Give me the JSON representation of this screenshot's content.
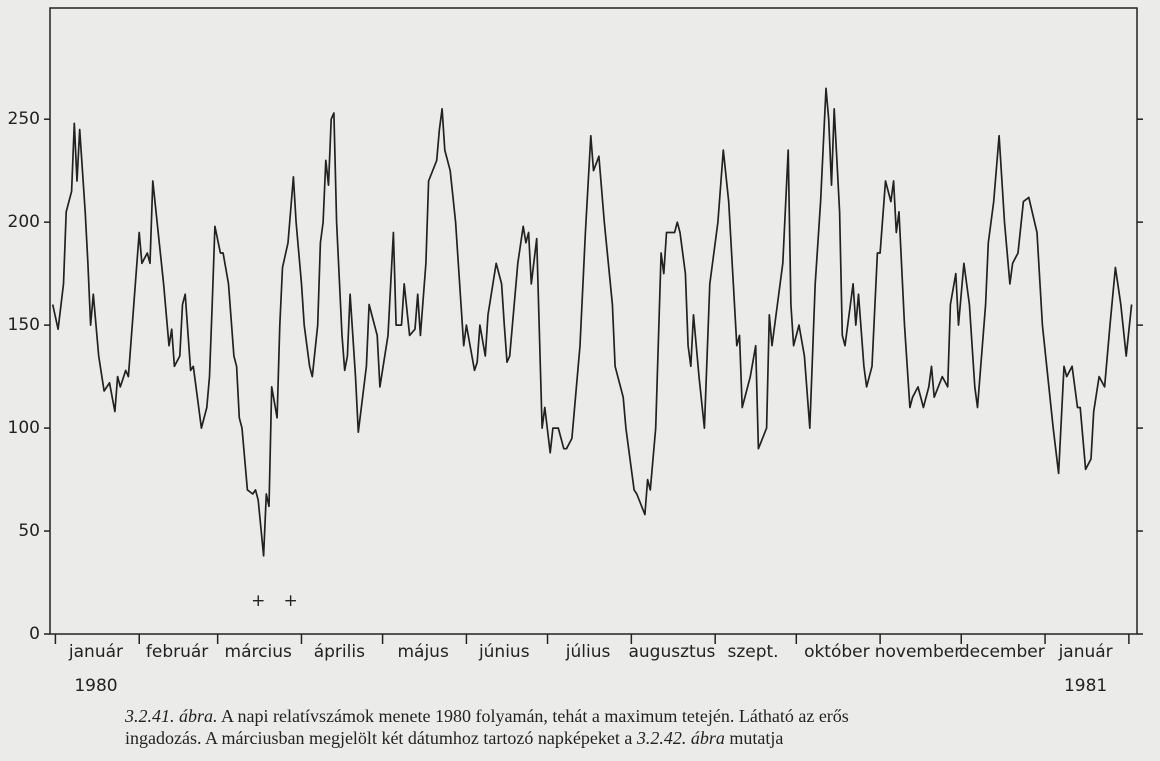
{
  "chart_data": {
    "type": "line",
    "xlim": [
      -2,
      400
    ],
    "ylim": [
      0,
      304
    ],
    "yticks": [
      0,
      50,
      100,
      150,
      200,
      250
    ],
    "xticks": [
      {
        "value": 15,
        "label": "január"
      },
      {
        "value": 45,
        "label": "február"
      },
      {
        "value": 75,
        "label": "március"
      },
      {
        "value": 105,
        "label": "április"
      },
      {
        "value": 136,
        "label": "május"
      },
      {
        "value": 166,
        "label": "június"
      },
      {
        "value": 197,
        "label": "július"
      },
      {
        "value": 228,
        "label": "augusztus"
      },
      {
        "value": 258,
        "label": "szept."
      },
      {
        "value": 289,
        "label": "október"
      },
      {
        "value": 319,
        "label": "november"
      },
      {
        "value": 350,
        "label": "december"
      },
      {
        "value": 381,
        "label": "január"
      }
    ],
    "month_boundaries": [
      0,
      31,
      60,
      91,
      121,
      152,
      182,
      213,
      244,
      274,
      305,
      335,
      366,
      397
    ],
    "year_labels": [
      {
        "value": 15,
        "label": "1980"
      },
      {
        "value": 381,
        "label": "1981"
      }
    ],
    "marked_days": {
      "x": [
        75,
        87
      ],
      "y": 16,
      "symbol": "+"
    },
    "x": [
      -1,
      1,
      3,
      4,
      6,
      7,
      8,
      9,
      11,
      12,
      13,
      14,
      16,
      18,
      20,
      22,
      23,
      24,
      26,
      27,
      29,
      31,
      32,
      34,
      35,
      36,
      38,
      40,
      42,
      43,
      44,
      46,
      47,
      48,
      50,
      51,
      53,
      54,
      56,
      57,
      58,
      59,
      61,
      62,
      64,
      66,
      67,
      68,
      69,
      71,
      73,
      74,
      75,
      77,
      78,
      79,
      80,
      82,
      83,
      84,
      86,
      88,
      89,
      91,
      92,
      94,
      95,
      97,
      98,
      99,
      100,
      101,
      102,
      103,
      104,
      106,
      107,
      108,
      109,
      111,
      112,
      115,
      116,
      118,
      119,
      120,
      123,
      125,
      126,
      128,
      129,
      131,
      133,
      134,
      135,
      137,
      138,
      141,
      142,
      143,
      144,
      146,
      148,
      150,
      151,
      152,
      155,
      156,
      157,
      159,
      160,
      163,
      165,
      166,
      167,
      168,
      171,
      173,
      174,
      175,
      176,
      178,
      180,
      181,
      183,
      184,
      186,
      188,
      189,
      191,
      194,
      196,
      198,
      199,
      201,
      203,
      206,
      207,
      210,
      211,
      214,
      215,
      218,
      219,
      220,
      222,
      224,
      225,
      226,
      229,
      230,
      231,
      233,
      234,
      235,
      236,
      238,
      240,
      242,
      245,
      247,
      249,
      252,
      253,
      254,
      257,
      259,
      260,
      263,
      264,
      265,
      268,
      269,
      271,
      272,
      273,
      275,
      277,
      279,
      281,
      283,
      285,
      286,
      287,
      288,
      290,
      291,
      292,
      295,
      296,
      297,
      299,
      300,
      302,
      304,
      305,
      307,
      309,
      310,
      311,
      312,
      314,
      316,
      317,
      319,
      321,
      323,
      324,
      325,
      328,
      330,
      331,
      333,
      334,
      336,
      338,
      340,
      341,
      344,
      345,
      347,
      349,
      351,
      353,
      354,
      356,
      358,
      360,
      363,
      365,
      367,
      369,
      371,
      373,
      374,
      376,
      378,
      379,
      381,
      383,
      384,
      386,
      388,
      390,
      392,
      394,
      396,
      398
    ],
    "series": [
      {
        "color": "#222222",
        "values": [
          160,
          148,
          170,
          205,
          215,
          248,
          220,
          245,
          205,
          180,
          150,
          165,
          135,
          118,
          122,
          108,
          125,
          120,
          128,
          125,
          160,
          195,
          180,
          185,
          180,
          220,
          195,
          170,
          140,
          148,
          130,
          135,
          160,
          165,
          128,
          130,
          110,
          100,
          110,
          125,
          160,
          198,
          185,
          185,
          170,
          135,
          130,
          105,
          100,
          70,
          68,
          70,
          65,
          38,
          68,
          62,
          120,
          105,
          150,
          178,
          190,
          222,
          200,
          170,
          150,
          130,
          125,
          150,
          190,
          200,
          230,
          218,
          250,
          253,
          200,
          145,
          128,
          135,
          165,
          125,
          98,
          130,
          160,
          150,
          145,
          120,
          145,
          195,
          150,
          150,
          170,
          145,
          148,
          165,
          145,
          180,
          220,
          230,
          245,
          255,
          235,
          225,
          200,
          160,
          140,
          150,
          128,
          132,
          150,
          135,
          155,
          180,
          170,
          150,
          132,
          135,
          180,
          198,
          190,
          195,
          170,
          192,
          100,
          110,
          88,
          100,
          100,
          90,
          90,
          95,
          140,
          195,
          242,
          225,
          232,
          200,
          160,
          130,
          115,
          100,
          70,
          68,
          58,
          75,
          70,
          100,
          185,
          175,
          195,
          195,
          200,
          195,
          175,
          140,
          130,
          155,
          125,
          100,
          170,
          200,
          235,
          210,
          140,
          145,
          110,
          125,
          140,
          90,
          100,
          155,
          140,
          170,
          180,
          235,
          160,
          140,
          150,
          135,
          100,
          170,
          210,
          265,
          250,
          218,
          255,
          205,
          145,
          140,
          170,
          150,
          165,
          130,
          120,
          130,
          185,
          185,
          220,
          210,
          220,
          195,
          205,
          150,
          110,
          115,
          120,
          110,
          120,
          130,
          115,
          125,
          120,
          160,
          175,
          150,
          180,
          160,
          120,
          110,
          160,
          190,
          210,
          242,
          200,
          170,
          180,
          185,
          210,
          212,
          195,
          150,
          125,
          100,
          78,
          130,
          125,
          130,
          110,
          110,
          80,
          85,
          108,
          125,
          120,
          150,
          178,
          160,
          135,
          160
        ]
      }
    ]
  },
  "caption": {
    "label": "3.2.41. ábra.",
    "line1": "A napi relatívszámok menete 1980 folyamán, tehát a maximum tetején. Látható az erős",
    "line2_a": "ingadozás. A márciusban megjelölt két dátumhoz tartozó napképeket a",
    "ref": "3.2.42. ábra",
    "line2_b": "mutatja"
  }
}
